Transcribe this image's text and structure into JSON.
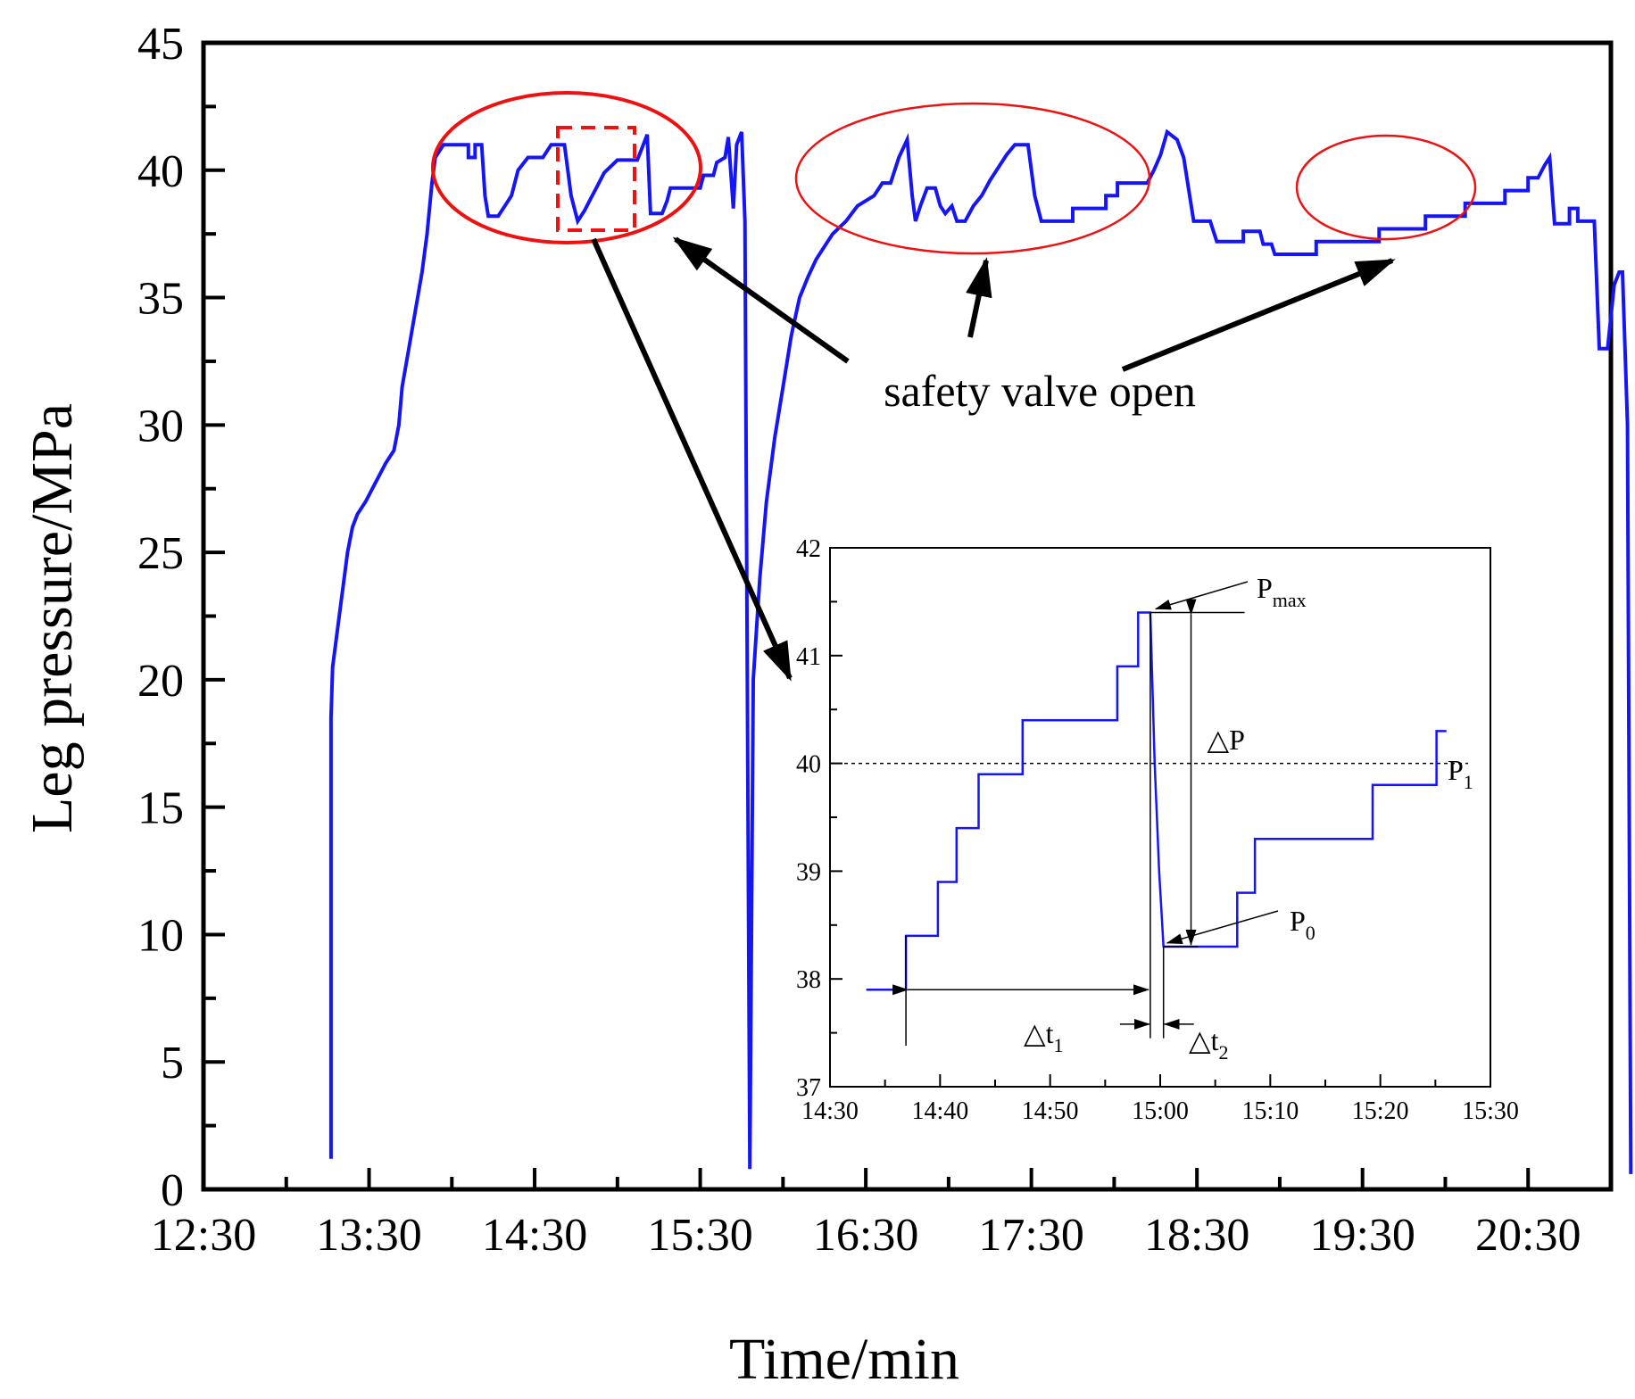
{
  "chart_data": [
    {
      "type": "line",
      "name": "main",
      "xlabel": "Time/min",
      "ylabel": "Leg pressure/MPa",
      "xlim": [
        12.5,
        21.0
      ],
      "ylim": [
        0,
        45
      ],
      "xticks": [
        {
          "v": 12.5,
          "label": "12:30"
        },
        {
          "v": 13.5,
          "label": "13:30"
        },
        {
          "v": 14.5,
          "label": "14:30"
        },
        {
          "v": 15.5,
          "label": "15:30"
        },
        {
          "v": 16.5,
          "label": "16:30"
        },
        {
          "v": 17.5,
          "label": "17:30"
        },
        {
          "v": 18.5,
          "label": "18:30"
        },
        {
          "v": 19.5,
          "label": "19:30"
        },
        {
          "v": 20.5,
          "label": "20:30"
        }
      ],
      "yticks": [
        0,
        5,
        10,
        15,
        20,
        25,
        30,
        35,
        40,
        45
      ],
      "series": [
        {
          "name": "Leg pressure",
          "color": "#1515f5",
          "points": [
            [
              13.27,
              1.2
            ],
            [
              13.27,
              18.5
            ],
            [
              13.28,
              20.5
            ],
            [
              13.3,
              21.5
            ],
            [
              13.32,
              22.5
            ],
            [
              13.35,
              24.0
            ],
            [
              13.37,
              25.0
            ],
            [
              13.4,
              26.0
            ],
            [
              13.43,
              26.5
            ],
            [
              13.48,
              27.0
            ],
            [
              13.52,
              27.5
            ],
            [
              13.56,
              28.0
            ],
            [
              13.6,
              28.5
            ],
            [
              13.65,
              29.0
            ],
            [
              13.68,
              30.0
            ],
            [
              13.7,
              31.5
            ],
            [
              13.74,
              33.0
            ],
            [
              13.78,
              34.5
            ],
            [
              13.82,
              36.0
            ],
            [
              13.85,
              37.5
            ],
            [
              13.88,
              39.5
            ],
            [
              13.9,
              40.5
            ],
            [
              13.95,
              41.0
            ],
            [
              14.1,
              41.0
            ],
            [
              14.1,
              40.5
            ],
            [
              14.14,
              40.5
            ],
            [
              14.14,
              41.0
            ],
            [
              14.18,
              41.0
            ],
            [
              14.2,
              39.0
            ],
            [
              14.22,
              38.2
            ],
            [
              14.28,
              38.2
            ],
            [
              14.32,
              38.6
            ],
            [
              14.36,
              39.0
            ],
            [
              14.4,
              40.0
            ],
            [
              14.46,
              40.5
            ],
            [
              14.55,
              40.5
            ],
            [
              14.6,
              41.0
            ],
            [
              14.68,
              41.0
            ],
            [
              14.72,
              39.0
            ],
            [
              14.76,
              38.0
            ],
            [
              14.8,
              38.4
            ],
            [
              14.84,
              38.9
            ],
            [
              14.88,
              39.4
            ],
            [
              14.92,
              39.9
            ],
            [
              15.0,
              40.4
            ],
            [
              15.12,
              40.4
            ],
            [
              15.15,
              40.9
            ],
            [
              15.18,
              41.4
            ],
            [
              15.2,
              38.3
            ],
            [
              15.27,
              38.3
            ],
            [
              15.3,
              38.8
            ],
            [
              15.32,
              39.3
            ],
            [
              15.5,
              39.3
            ],
            [
              15.52,
              39.8
            ],
            [
              15.58,
              39.8
            ],
            [
              15.6,
              40.3
            ],
            [
              15.65,
              40.5
            ],
            [
              15.67,
              41.3
            ],
            [
              15.7,
              38.5
            ],
            [
              15.72,
              41.0
            ],
            [
              15.75,
              41.5
            ],
            [
              15.77,
              38.0
            ],
            [
              15.8,
              0.8
            ],
            [
              15.82,
              20.0
            ],
            [
              15.86,
              24.0
            ],
            [
              15.9,
              27.0
            ],
            [
              15.95,
              29.5
            ],
            [
              16.0,
              31.5
            ],
            [
              16.05,
              33.5
            ],
            [
              16.1,
              35.0
            ],
            [
              16.15,
              35.8
            ],
            [
              16.2,
              36.5
            ],
            [
              16.25,
              37.0
            ],
            [
              16.3,
              37.5
            ],
            [
              16.38,
              38.0
            ],
            [
              16.45,
              38.6
            ],
            [
              16.55,
              39.0
            ],
            [
              16.6,
              39.5
            ],
            [
              16.65,
              39.5
            ],
            [
              16.7,
              40.5
            ],
            [
              16.75,
              41.2
            ],
            [
              16.78,
              39.0
            ],
            [
              16.8,
              38.0
            ],
            [
              16.83,
              38.6
            ],
            [
              16.87,
              39.3
            ],
            [
              16.92,
              39.3
            ],
            [
              16.95,
              38.6
            ],
            [
              16.98,
              38.3
            ],
            [
              17.02,
              38.6
            ],
            [
              17.05,
              38.0
            ],
            [
              17.1,
              38.0
            ],
            [
              17.15,
              38.6
            ],
            [
              17.2,
              39.0
            ],
            [
              17.25,
              39.6
            ],
            [
              17.3,
              40.1
            ],
            [
              17.35,
              40.6
            ],
            [
              17.4,
              41.0
            ],
            [
              17.48,
              41.0
            ],
            [
              17.52,
              39.0
            ],
            [
              17.56,
              38.0
            ],
            [
              17.75,
              38.0
            ],
            [
              17.75,
              38.5
            ],
            [
              17.95,
              38.5
            ],
            [
              17.95,
              39.0
            ],
            [
              18.02,
              39.0
            ],
            [
              18.02,
              39.5
            ],
            [
              18.2,
              39.5
            ],
            [
              18.24,
              40.0
            ],
            [
              18.28,
              40.6
            ],
            [
              18.32,
              41.5
            ],
            [
              18.38,
              41.2
            ],
            [
              18.42,
              40.5
            ],
            [
              18.48,
              38.0
            ],
            [
              18.58,
              38.0
            ],
            [
              18.62,
              37.2
            ],
            [
              18.78,
              37.2
            ],
            [
              18.78,
              37.6
            ],
            [
              18.88,
              37.6
            ],
            [
              18.9,
              37.1
            ],
            [
              18.95,
              37.1
            ],
            [
              18.97,
              36.7
            ],
            [
              19.22,
              36.7
            ],
            [
              19.22,
              37.2
            ],
            [
              19.6,
              37.2
            ],
            [
              19.6,
              37.7
            ],
            [
              19.88,
              37.7
            ],
            [
              19.88,
              38.2
            ],
            [
              20.12,
              38.2
            ],
            [
              20.12,
              38.7
            ],
            [
              20.36,
              38.7
            ],
            [
              20.36,
              39.2
            ],
            [
              20.5,
              39.2
            ],
            [
              20.5,
              39.7
            ],
            [
              20.56,
              39.7
            ],
            [
              20.6,
              40.2
            ],
            [
              20.63,
              40.5
            ],
            [
              20.66,
              37.9
            ],
            [
              20.75,
              37.9
            ],
            [
              20.75,
              38.5
            ],
            [
              20.8,
              38.5
            ],
            [
              20.8,
              38.0
            ],
            [
              20.9,
              38.0
            ],
            [
              20.93,
              33.0
            ],
            [
              20.98,
              33.0
            ],
            [
              21.02,
              35.5
            ],
            [
              21.05,
              36.0
            ],
            [
              21.07,
              36.0
            ],
            [
              21.1,
              30.0
            ],
            [
              21.12,
              0.6
            ]
          ]
        }
      ]
    },
    {
      "type": "line",
      "name": "inset",
      "xlabel": "",
      "ylabel": "",
      "xlim": [
        870,
        930
      ],
      "ylim": [
        37,
        42
      ],
      "xticks": [
        {
          "v": 870,
          "label": "14:30"
        },
        {
          "v": 880,
          "label": "14:40"
        },
        {
          "v": 890,
          "label": "14:50"
        },
        {
          "v": 900,
          "label": "15:00"
        },
        {
          "v": 910,
          "label": "15:10"
        },
        {
          "v": 920,
          "label": "15:20"
        },
        {
          "v": 930,
          "label": "15:30"
        }
      ],
      "yticks": [
        37,
        38,
        39,
        40,
        41,
        42
      ],
      "reference_line": 40.0,
      "series": [
        {
          "name": "Leg pressure (zoom)",
          "color": "#1515f5",
          "points": [
            [
              873.3,
              37.9
            ],
            [
              876.9,
              37.9
            ],
            [
              876.9,
              38.4
            ],
            [
              879.8,
              38.4
            ],
            [
              879.8,
              38.9
            ],
            [
              881.5,
              38.9
            ],
            [
              881.5,
              39.4
            ],
            [
              883.5,
              39.4
            ],
            [
              883.5,
              39.9
            ],
            [
              887.5,
              39.9
            ],
            [
              887.5,
              40.4
            ],
            [
              896.1,
              40.4
            ],
            [
              896.1,
              40.9
            ],
            [
              898.0,
              40.9
            ],
            [
              898.0,
              41.4
            ],
            [
              899.1,
              41.4
            ],
            [
              899.5,
              40.0
            ],
            [
              899.9,
              39.0
            ],
            [
              900.3,
              38.3
            ],
            [
              907.0,
              38.3
            ],
            [
              907.0,
              38.8
            ],
            [
              908.6,
              38.8
            ],
            [
              908.6,
              39.3
            ],
            [
              919.3,
              39.3
            ],
            [
              919.3,
              39.8
            ],
            [
              925.1,
              39.8
            ],
            [
              925.1,
              40.3
            ],
            [
              926.0,
              40.3
            ]
          ]
        }
      ]
    }
  ],
  "annotations": {
    "safety_valve": "safety valve open",
    "p_max_base": "P",
    "p_max_sub": "max",
    "delta_p": "△P",
    "p1_base": "P",
    "p1_sub": "1",
    "p0_base": "P",
    "p0_sub": "0",
    "dt1_base": "△t",
    "dt1_sub": "1",
    "dt2_base": "△t",
    "dt2_sub": "2"
  },
  "colors": {
    "line": "#1515f5",
    "highlight": "#ee1111",
    "axis": "#000000"
  }
}
